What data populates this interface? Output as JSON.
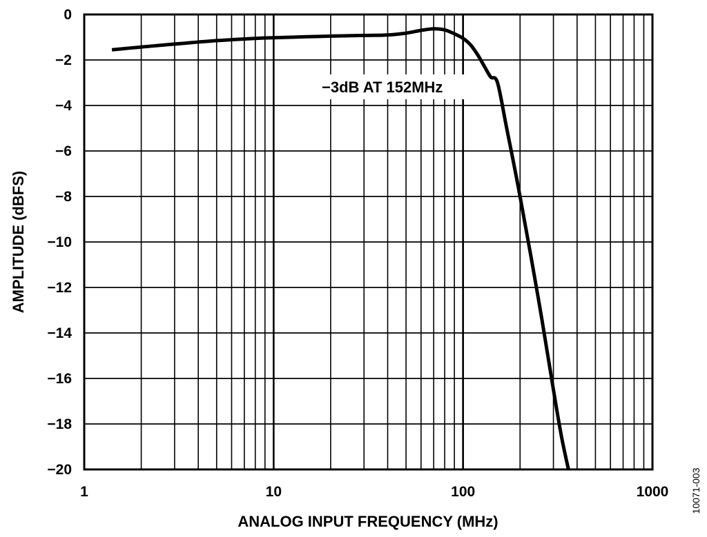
{
  "chart_data": {
    "type": "line",
    "title": "",
    "xlabel": "ANALOG INPUT FREQUENCY (MHz)",
    "ylabel": "AMPLITUDE (dBFS)",
    "x_scale": "log",
    "xlim": [
      1,
      1000
    ],
    "ylim": [
      -20,
      0
    ],
    "grid": true,
    "x_ticks": [
      1,
      10,
      100,
      1000
    ],
    "x_tick_labels": [
      "1",
      "10",
      "100",
      "1000"
    ],
    "y_ticks": [
      0,
      -2,
      -4,
      -6,
      -8,
      -10,
      -12,
      -14,
      -16,
      -18,
      -20
    ],
    "y_tick_labels": [
      "0",
      "−2",
      "−4",
      "−6",
      "−8",
      "−10",
      "−12",
      "−14",
      "−16",
      "−18",
      "−20"
    ],
    "series": [
      {
        "x": [
          1.4,
          2,
          3,
          5,
          8,
          10,
          15,
          20,
          30,
          40,
          50,
          60,
          70,
          80,
          90,
          100,
          110,
          120,
          130,
          140,
          152,
          170,
          200,
          250,
          300,
          330,
          360
        ],
        "y": [
          -1.55,
          -1.43,
          -1.3,
          -1.15,
          -1.05,
          -1.02,
          -0.98,
          -0.95,
          -0.92,
          -0.9,
          -0.82,
          -0.7,
          -0.63,
          -0.68,
          -0.85,
          -1.05,
          -1.35,
          -1.8,
          -2.3,
          -2.75,
          -3.0,
          -5.0,
          -8.0,
          -12.5,
          -16.5,
          -18.5,
          -20.0
        ]
      }
    ],
    "annotations": [
      {
        "text": "−3dB  AT 152MHz"
      }
    ],
    "figure_id": "10071-003"
  }
}
